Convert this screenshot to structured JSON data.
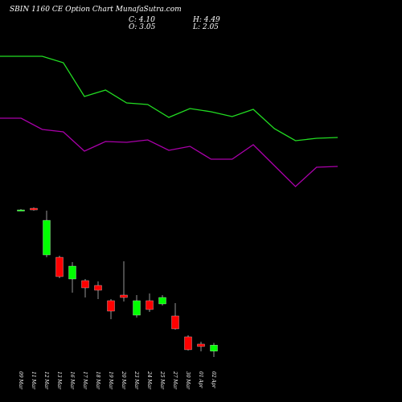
{
  "title": "SBIN 1160 CE Option  Chart MunafaSutra.com",
  "readout": [
    "C: 4.10",
    "O: 3.05",
    "H: 4.49",
    "L: 2.05"
  ],
  "chart_data": [
    {
      "type": "line",
      "x": [
        0,
        1,
        2,
        3,
        4,
        5,
        6,
        7,
        8,
        9,
        10,
        11,
        12,
        13,
        14,
        15,
        16
      ],
      "xlim": [
        0,
        16
      ],
      "ylim": [
        0,
        20
      ],
      "series": [
        {
          "color": "#22dd22",
          "values": [
            18,
            18,
            18,
            17.2,
            13,
            13.8,
            12.2,
            12,
            10.4,
            11.5,
            11.1,
            10.5,
            11.4,
            9,
            7.5,
            7.8,
            7.9
          ]
        },
        {
          "color": "#aa00aa",
          "values": [
            10.3,
            10.3,
            8.9,
            8.6,
            6.2,
            7.4,
            7.3,
            7.6,
            6.3,
            6.8,
            5.2,
            5.2,
            7,
            4.4,
            1.8,
            4.2,
            4.3
          ]
        }
      ]
    },
    {
      "type": "candlestick",
      "categories": [
        "09 Mar",
        "11 Mar",
        "12 Mar",
        "13 Mar",
        "16 Mar",
        "17 Mar",
        "18 Mar",
        "19 Mar",
        "20 Mar",
        "23 Mar",
        "24 Mar",
        "25 Mar",
        "27 Mar",
        "30 Mar",
        "01 Apr",
        "02 Apr"
      ],
      "open": [
        27.67,
        27.95,
        19.83,
        19.41,
        15.63,
        15.35,
        14.51,
        11.85,
        12.83,
        9.33,
        11.85,
        11.29,
        9.19,
        5.55,
        4.29,
        3.05
      ],
      "high": [
        27.81,
        28.09,
        27.53,
        19.69,
        18.57,
        15.63,
        15.21,
        12.13,
        18.71,
        12.83,
        13.11,
        12.83,
        11.43,
        5.83,
        4.71,
        4.49
      ],
      "low": [
        27.53,
        27.53,
        19.41,
        15.77,
        13.25,
        12.41,
        12.13,
        8.63,
        11.71,
        8.91,
        9.89,
        11.01,
        6.81,
        3.17,
        3.03,
        2.05
      ],
      "close": [
        27.67,
        27.67,
        25.85,
        16.05,
        17.87,
        14.09,
        13.67,
        10.03,
        12.41,
        11.85,
        10.31,
        12.41,
        6.95,
        3.31,
        3.87,
        4.1
      ],
      "up_color": "#00ff00",
      "down_color": "#ff0000",
      "ylim": [
        0,
        30
      ]
    }
  ]
}
